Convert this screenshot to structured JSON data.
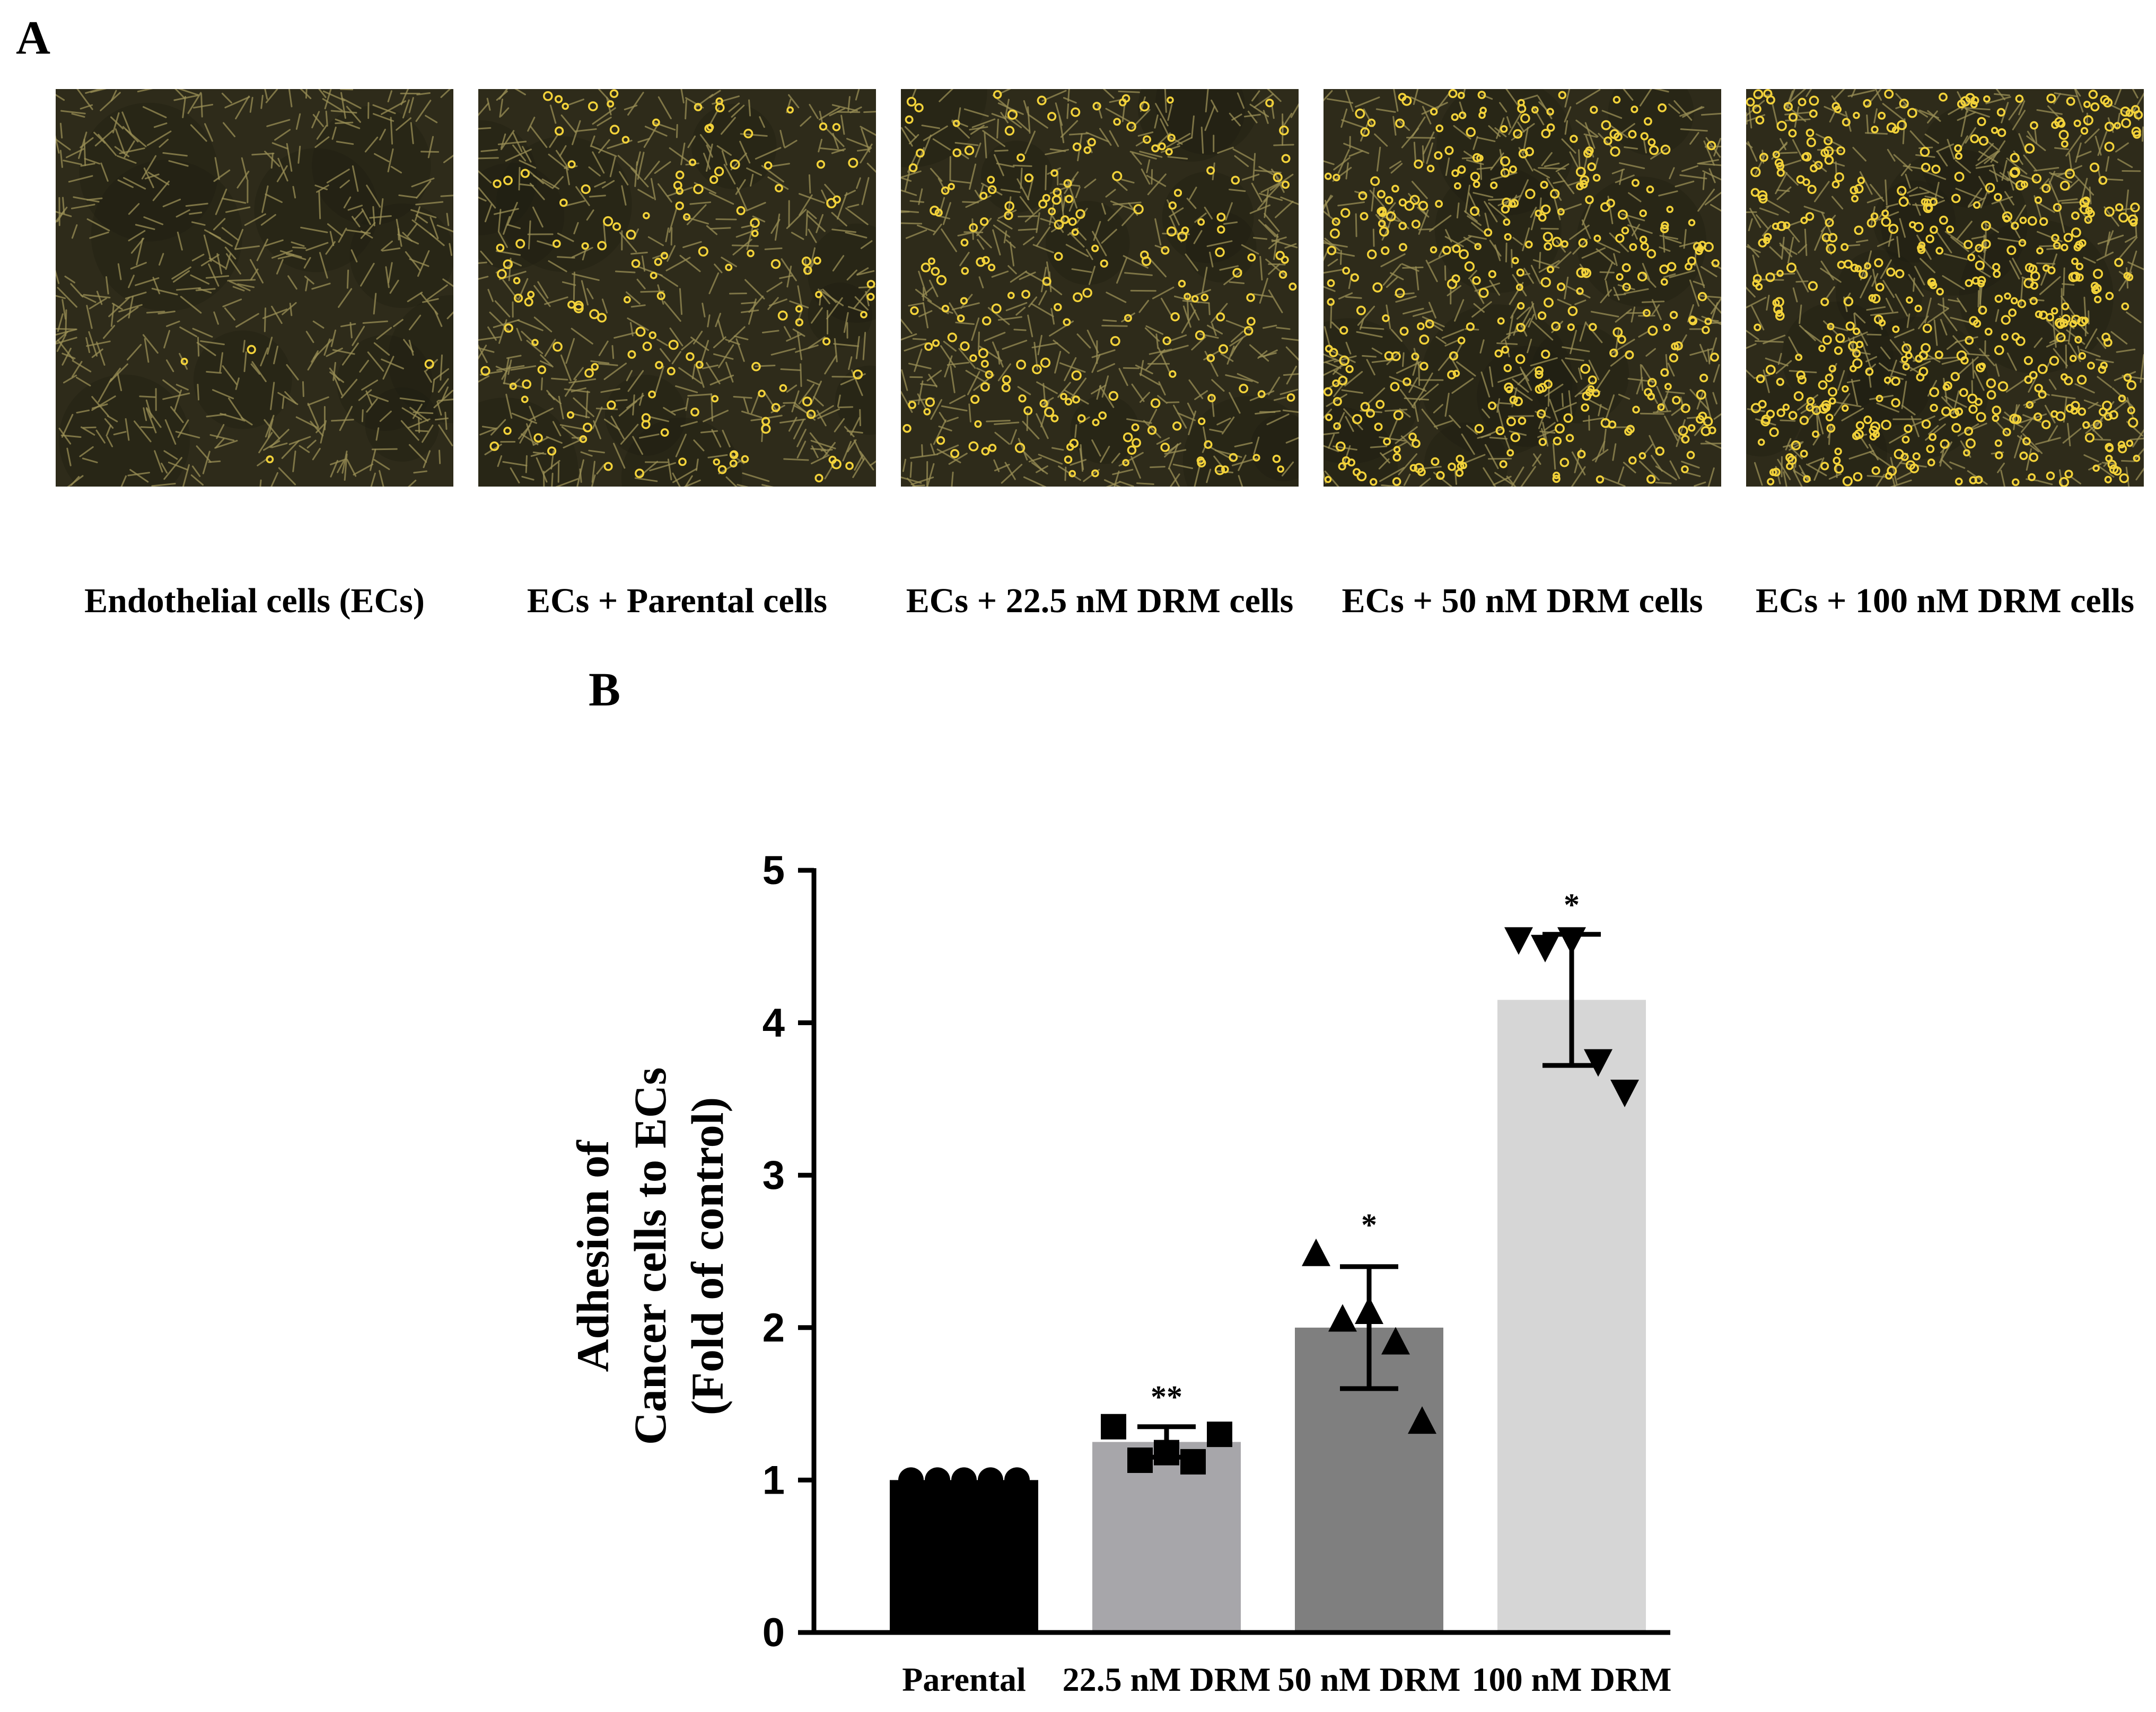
{
  "panel_a": {
    "letter": "A",
    "images": [
      {
        "label": "Endothelial cells (ECs)",
        "cancer_cells": 4
      },
      {
        "label": "ECs + Parental cells",
        "cancer_cells": 140
      },
      {
        "label": "ECs + 22.5 nM DRM cells",
        "cancer_cells": 190
      },
      {
        "label": "ECs + 50 nM DRM cells",
        "cancer_cells": 330
      },
      {
        "label": "ECs + 100 nM DRM cells",
        "cancer_cells": 480
      }
    ],
    "colors": {
      "background": "#2e2b1a",
      "endothelial": "#9a8f55",
      "cancer": "#f2d23a"
    }
  },
  "panel_b": {
    "letter": "B"
  },
  "chart_data": {
    "type": "bar",
    "title": "",
    "categories": [
      "Parental",
      "22.5 nM DRM",
      "50 nM DRM",
      "100 nM DRM"
    ],
    "values": [
      1.0,
      1.25,
      2.0,
      4.15
    ],
    "error_sd": [
      0.0,
      0.1,
      0.4,
      0.43
    ],
    "significance": [
      "",
      "**",
      "*",
      "*"
    ],
    "points": [
      [
        1.0,
        1.0,
        1.0,
        1.0,
        1.0
      ],
      [
        1.35,
        1.13,
        1.18,
        1.12,
        1.3
      ],
      [
        2.48,
        2.05,
        2.1,
        1.9,
        1.38
      ],
      [
        4.55,
        4.5,
        4.55,
        3.75,
        3.55
      ]
    ],
    "markers": [
      "circle",
      "square",
      "triangle-up",
      "triangle-down"
    ],
    "bar_colors": [
      "#000000",
      "#a7a6aa",
      "#7f7f7f",
      "#d6d6d6"
    ],
    "ylabel_lines": [
      "Adhesion of",
      "Cancer cells to ECs",
      "(Fold of control)"
    ],
    "xlabel": "",
    "ylim": [
      0,
      5
    ],
    "yticks": [
      0,
      1,
      2,
      3,
      4,
      5
    ],
    "grid": false
  }
}
